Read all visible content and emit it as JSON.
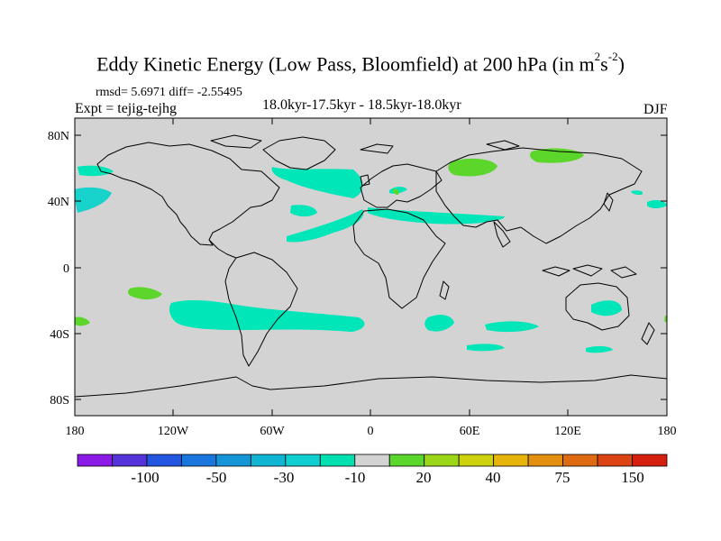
{
  "title": {
    "main": "Eddy Kinetic Energy (Low Pass, Bloomfield) at 200 hPa (in m",
    "unit_sup1": "2",
    "unit_mid": "s",
    "unit_sup2": "-2",
    "unit_end": ")"
  },
  "stats": "rmsd= 5.6971 diff= -2.55495",
  "experiment": "Expt = tejig-tejhg",
  "subtitle": "18.0kyr-17.5kyr - 18.5kyr-18.0kyr",
  "season": "DJF",
  "map": {
    "lat_ticks": [
      "80N",
      "40N",
      "0",
      "40S",
      "80S"
    ],
    "lon_ticks": [
      "180",
      "120W",
      "60W",
      "0",
      "60E",
      "120E",
      "180"
    ],
    "background_color": "#d3d3d3",
    "negative_color": "#00e6b8",
    "negative_dark_color": "#18d2cc",
    "positive_color": "#5dd62c"
  },
  "colorbar": {
    "labels": [
      "-100",
      "-50",
      "-30",
      "-10",
      "20",
      "40",
      "75",
      "150"
    ],
    "colors": [
      "#8c1ae6",
      "#5533d9",
      "#2255e0",
      "#1976dd",
      "#1495d8",
      "#10b5d4",
      "#0fcfd0",
      "#00e0b0",
      "#d3d3d3",
      "#5ad62c",
      "#9cd618",
      "#cdd10e",
      "#e6b40a",
      "#e38f10",
      "#de6a12",
      "#dc4414",
      "#d6200f"
    ]
  }
}
